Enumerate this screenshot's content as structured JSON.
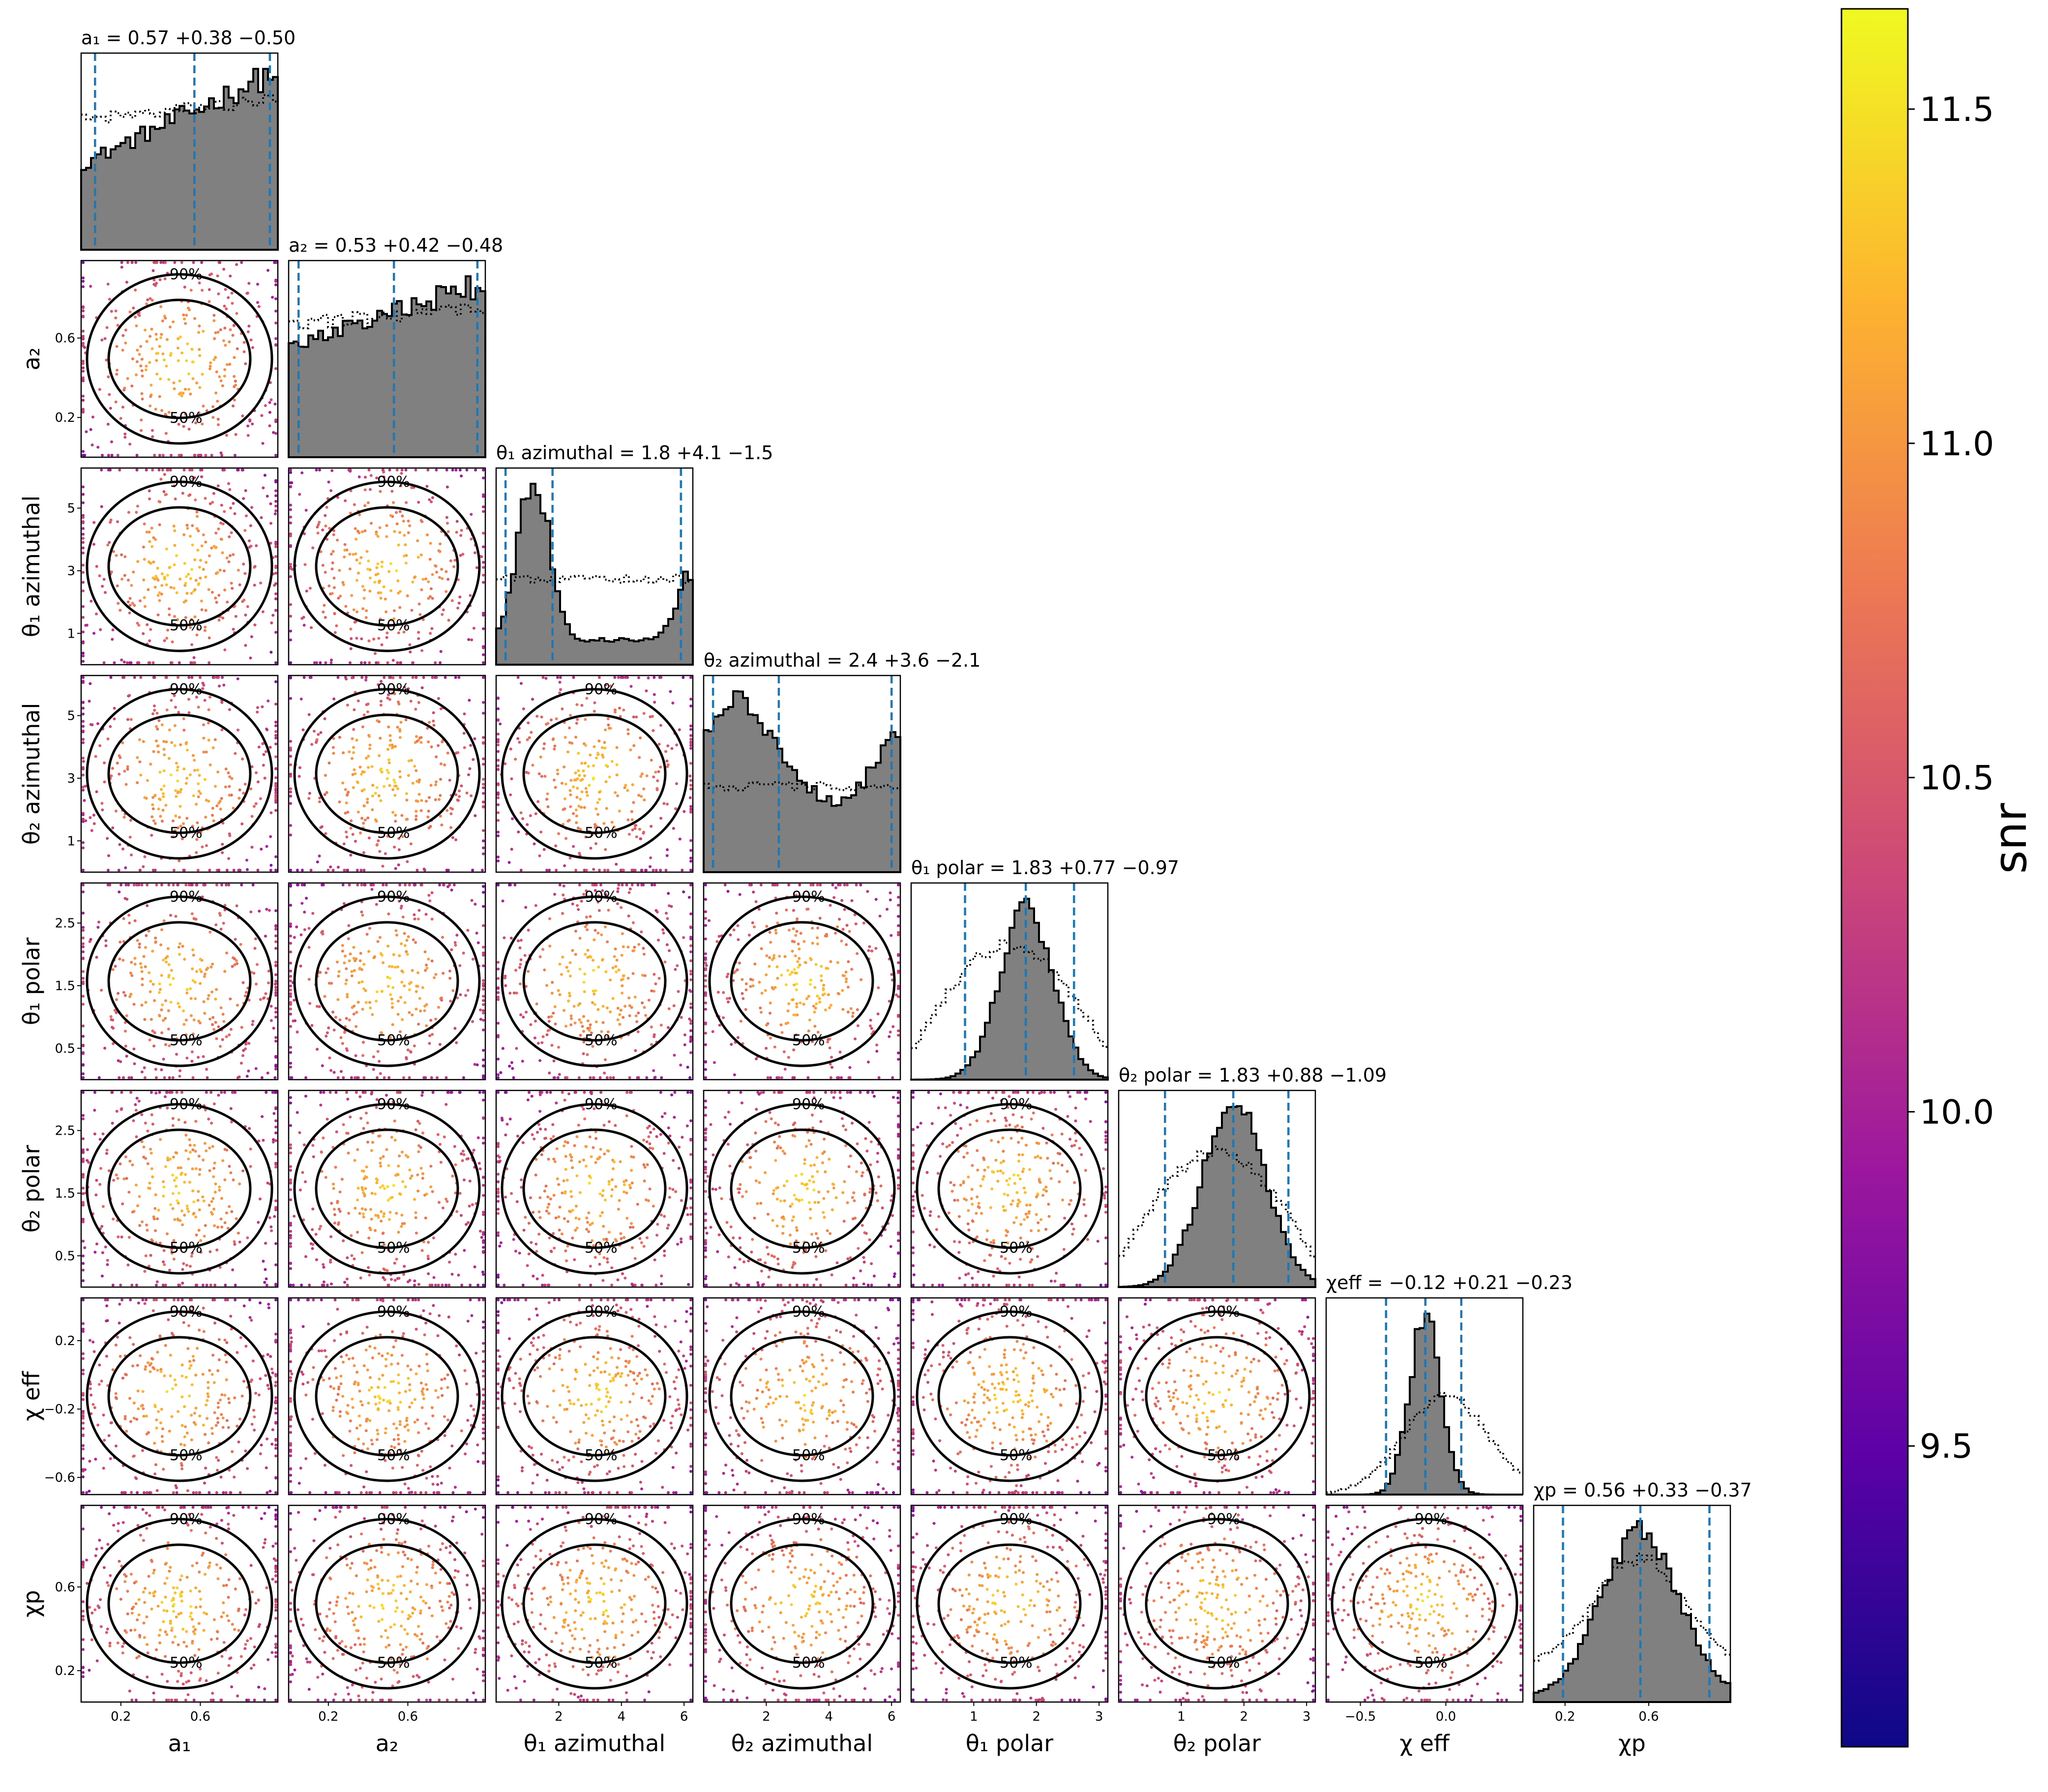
{
  "chart_data": {
    "type": "corner",
    "parameters": [
      {
        "key": "a1",
        "axis_label": "a₁",
        "title": "a₁ = 0.57 +0.38 −0.50",
        "range": [
          0.0,
          0.99
        ],
        "ticks": [
          {
            "v": 0.2,
            "label": "0.2"
          },
          {
            "v": 0.6,
            "label": "0.6"
          }
        ],
        "median": 0.57,
        "lower": 0.07,
        "upper": 0.95
      },
      {
        "key": "a2",
        "axis_label": "a₂",
        "title": "a₂ = 0.53 +0.42 −0.48",
        "range": [
          0.0,
          0.99
        ],
        "ticks": [
          {
            "v": 0.2,
            "label": "0.2"
          },
          {
            "v": 0.6,
            "label": "0.6"
          }
        ],
        "median": 0.53,
        "lower": 0.05,
        "upper": 0.95
      },
      {
        "key": "theta1_az",
        "axis_label": "θ₁ azimuthal",
        "title": "θ₁ azimuthal = 1.8 +4.1 −1.5",
        "range": [
          0.0,
          6.28
        ],
        "ticks": [
          {
            "v": 1,
            "label": "1"
          },
          {
            "v": 3,
            "label": "3"
          },
          {
            "v": 5,
            "label": "5"
          }
        ],
        "x_ticks": [
          {
            "v": 2,
            "label": "2"
          },
          {
            "v": 4,
            "label": "4"
          },
          {
            "v": 6,
            "label": "6"
          }
        ],
        "median": 1.8,
        "lower": 0.3,
        "upper": 5.9
      },
      {
        "key": "theta2_az",
        "axis_label": "θ₂ azimuthal",
        "title": "θ₂ azimuthal = 2.4 +3.6 −2.1",
        "range": [
          0.0,
          6.28
        ],
        "ticks": [
          {
            "v": 1,
            "label": "1"
          },
          {
            "v": 3,
            "label": "3"
          },
          {
            "v": 5,
            "label": "5"
          }
        ],
        "x_ticks": [
          {
            "v": 2,
            "label": "2"
          },
          {
            "v": 4,
            "label": "4"
          },
          {
            "v": 6,
            "label": "6"
          }
        ],
        "median": 2.4,
        "lower": 0.3,
        "upper": 6.0
      },
      {
        "key": "theta1_pol",
        "axis_label": "θ₁ polar",
        "title": "θ₁ polar = 1.83 +0.77 −0.97",
        "range": [
          0.0,
          3.14
        ],
        "ticks": [
          {
            "v": 0.5,
            "label": "0.5"
          },
          {
            "v": 1.5,
            "label": "1.5"
          },
          {
            "v": 2.5,
            "label": "2.5"
          }
        ],
        "x_ticks": [
          {
            "v": 1,
            "label": "1"
          },
          {
            "v": 2,
            "label": "2"
          },
          {
            "v": 3,
            "label": "3"
          }
        ],
        "median": 1.83,
        "lower": 0.86,
        "upper": 2.6
      },
      {
        "key": "theta2_pol",
        "axis_label": "θ₂ polar",
        "title": "θ₂ polar = 1.83 +0.88 −1.09",
        "range": [
          0.0,
          3.14
        ],
        "ticks": [
          {
            "v": 0.5,
            "label": "0.5"
          },
          {
            "v": 1.5,
            "label": "1.5"
          },
          {
            "v": 2.5,
            "label": "2.5"
          }
        ],
        "x_ticks": [
          {
            "v": 1,
            "label": "1"
          },
          {
            "v": 2,
            "label": "2"
          },
          {
            "v": 3,
            "label": "3"
          }
        ],
        "median": 1.83,
        "lower": 0.74,
        "upper": 2.71
      },
      {
        "key": "chi_eff",
        "axis_label": "χ eff",
        "title": "χeff = −0.12 +0.21 −0.23",
        "range": [
          -0.7,
          0.45
        ],
        "ticks": [
          {
            "v": 0.2,
            "label": "0.2"
          },
          {
            "v": -0.2,
            "label": "−0.2"
          },
          {
            "v": -0.6,
            "label": "−0.6"
          }
        ],
        "x_ticks": [
          {
            "v": -0.5,
            "label": "−0.5"
          },
          {
            "v": 0.0,
            "label": "0.0"
          }
        ],
        "median": -0.12,
        "lower": -0.35,
        "upper": 0.09
      },
      {
        "key": "chi_p",
        "axis_label": "χp",
        "title": "χp = 0.56 +0.33 −0.37",
        "range": [
          0.05,
          0.99
        ],
        "ticks": [
          {
            "v": 0.2,
            "label": "0.2"
          },
          {
            "v": 0.6,
            "label": "0.6"
          }
        ],
        "median": 0.56,
        "lower": 0.19,
        "upper": 0.89
      }
    ],
    "contour_levels": [
      "50%",
      "90%"
    ],
    "colorbar": {
      "label": "snr",
      "range": [
        9.05,
        11.65
      ],
      "ticks": [
        {
          "v": 9.5,
          "label": "9.5"
        },
        {
          "v": 10.0,
          "label": "10.0"
        },
        {
          "v": 10.5,
          "label": "10.5"
        },
        {
          "v": 11.0,
          "label": "11.0"
        },
        {
          "v": 11.5,
          "label": "11.5"
        }
      ],
      "colormap": [
        "#0d0887",
        "#5c01a6",
        "#9c179e",
        "#cc4778",
        "#ed7953",
        "#fdb42f",
        "#f0f921"
      ]
    },
    "colors": {
      "quantile_line": "#1f77b4",
      "histogram_fill": "#808080",
      "contour": "#000000"
    }
  }
}
